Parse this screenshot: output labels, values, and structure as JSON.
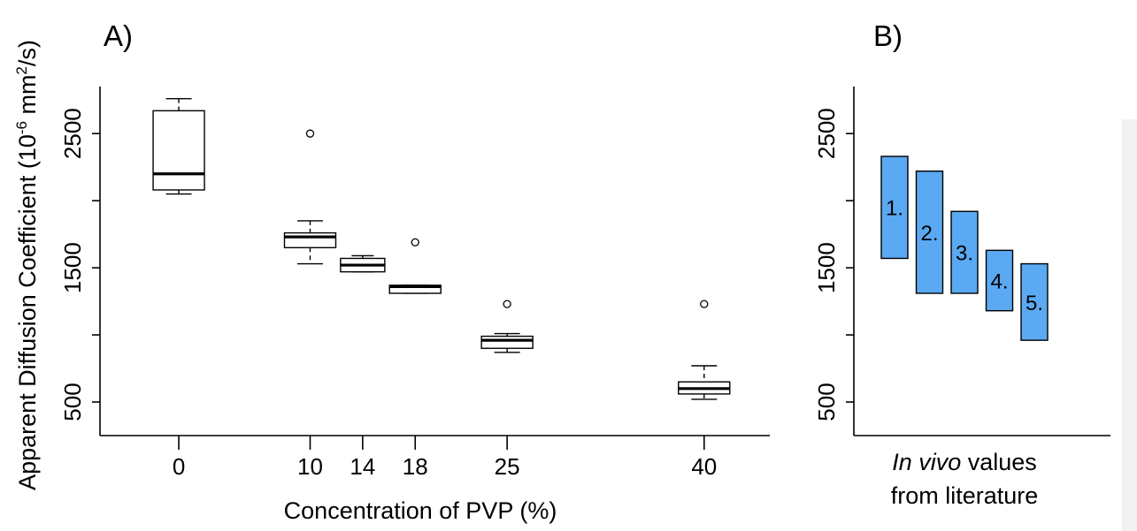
{
  "chart_data": [
    {
      "type": "box",
      "panel_label": "A)",
      "xlabel": "Concentration of PVP (%)",
      "ylabel_prefix": "Apparent Diffusion Coefficient (10",
      "ylabel_exp1": "-6",
      "ylabel_mid": " mm",
      "ylabel_exp2": "2",
      "ylabel_suffix": "/s)",
      "ylim": [
        250,
        2850
      ],
      "yticks": [
        500,
        1500,
        2500
      ],
      "ytick_labels": [
        "500",
        "1500",
        "2500"
      ],
      "yticks_unlabeled": [
        1000,
        2000
      ],
      "xlim": [
        -6,
        45
      ],
      "xticks": [
        0,
        10,
        14,
        18,
        25,
        40
      ],
      "xtick_labels": [
        "0",
        "10",
        "14",
        "18",
        "25",
        "40"
      ],
      "boxes": [
        {
          "x": 0,
          "whisker_low": 2050,
          "q1": 2080,
          "median": 2200,
          "q3": 2670,
          "whisker_high": 2760,
          "outliers": []
        },
        {
          "x": 10,
          "whisker_low": 1530,
          "q1": 1650,
          "median": 1730,
          "q3": 1760,
          "whisker_high": 1850,
          "outliers": [
            2500
          ]
        },
        {
          "x": 14,
          "whisker_low": 1470,
          "q1": 1470,
          "median": 1520,
          "q3": 1570,
          "whisker_high": 1590,
          "outliers": []
        },
        {
          "x": 18,
          "whisker_low": 1310,
          "q1": 1310,
          "median": 1360,
          "q3": 1370,
          "whisker_high": 1370,
          "outliers": [
            1690
          ]
        },
        {
          "x": 25,
          "whisker_low": 870,
          "q1": 900,
          "median": 960,
          "q3": 990,
          "whisker_high": 1010,
          "outliers": [
            1230
          ]
        },
        {
          "x": 40,
          "whisker_low": 520,
          "q1": 560,
          "median": 600,
          "q3": 650,
          "whisker_high": 770,
          "outliers": [
            1230
          ]
        }
      ]
    },
    {
      "type": "range",
      "panel_label": "B)",
      "xlabel_italic": "In vivo",
      "xlabel_rest": " values",
      "xlabel_line2": "from literature",
      "ylim": [
        250,
        2850
      ],
      "yticks": [
        500,
        1500,
        2500
      ],
      "ytick_labels": [
        "500",
        "1500",
        "2500"
      ],
      "yticks_unlabeled": [
        1000,
        2000
      ],
      "ranges": [
        {
          "label": "1.",
          "low": 1570,
          "high": 2330
        },
        {
          "label": "2.",
          "low": 1310,
          "high": 2220
        },
        {
          "label": "3.",
          "low": 1310,
          "high": 1920
        },
        {
          "label": "4.",
          "low": 1180,
          "high": 1630
        },
        {
          "label": "5.",
          "low": 960,
          "high": 1530
        }
      ]
    }
  ]
}
